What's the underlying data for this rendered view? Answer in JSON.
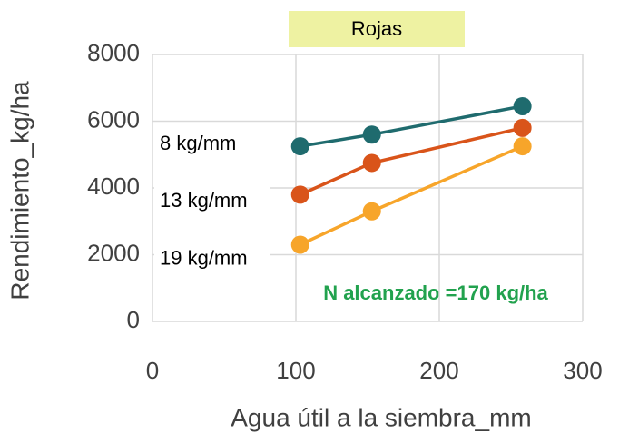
{
  "chart_data": {
    "type": "line",
    "title": "Rojas",
    "xlabel": "Agua útil a la siembra_mm",
    "ylabel": "Rendimiento_kg/ha",
    "annotation": "N alcanzado =170 kg/ha",
    "x": [
      103,
      153,
      258
    ],
    "series": [
      {
        "name": "8 kg/mm",
        "color": "#1f6b6e",
        "values": [
          5250,
          5600,
          6450
        ]
      },
      {
        "name": "13 kg/mm",
        "color": "#d9541a",
        "values": [
          3800,
          4750,
          5800
        ]
      },
      {
        "name": "19 kg/mm",
        "color": "#f7a52a",
        "values": [
          2300,
          3300,
          5250
        ]
      }
    ],
    "xlim": [
      0,
      300
    ],
    "xticks": [
      0,
      100,
      200,
      300
    ],
    "ylim": [
      0,
      8000
    ],
    "yticks": [
      0,
      2000,
      4000,
      6000,
      8000
    ],
    "grid": true
  }
}
